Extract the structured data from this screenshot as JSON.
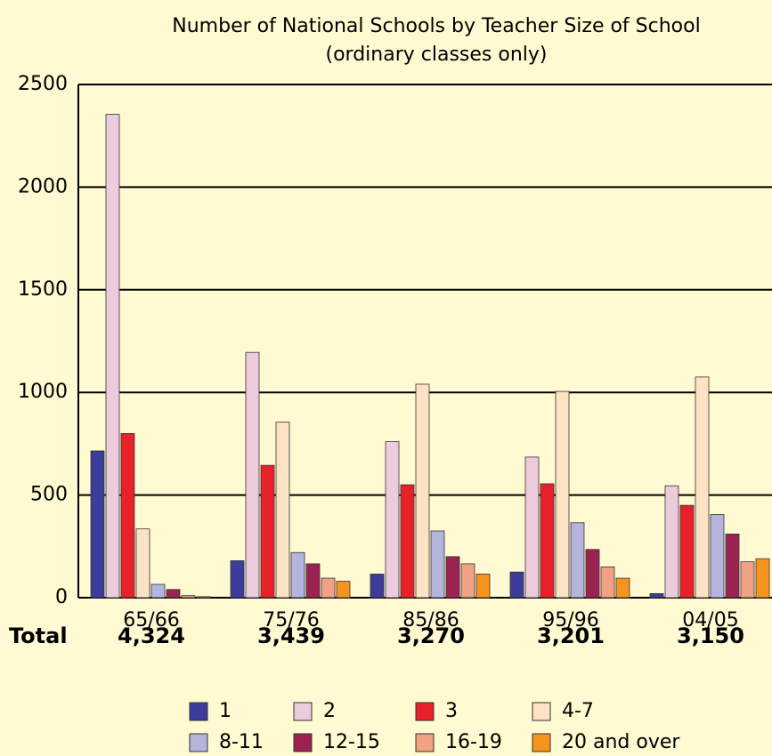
{
  "chart_data": {
    "type": "bar",
    "title": "Number of National Schools by Teacher Size of School",
    "subtitle": "(ordinary classes only)",
    "categories": [
      "65/66",
      "75/76",
      "85/86",
      "95/96",
      "04/05"
    ],
    "series": [
      {
        "name": "1",
        "color": "#3c3c9c",
        "values": [
          715,
          180,
          115,
          125,
          20
        ]
      },
      {
        "name": "2",
        "color": "#ecccdc",
        "values": [
          2355,
          1195,
          760,
          685,
          545
        ]
      },
      {
        "name": "3",
        "color": "#e8202a",
        "values": [
          800,
          645,
          550,
          555,
          450
        ]
      },
      {
        "name": "4-7",
        "color": "#fde2c4",
        "values": [
          335,
          855,
          1040,
          1005,
          1075
        ]
      },
      {
        "name": "8-11",
        "color": "#b4b4dc",
        "values": [
          65,
          220,
          325,
          365,
          405
        ]
      },
      {
        "name": "12-15",
        "color": "#9c2252",
        "values": [
          40,
          165,
          200,
          235,
          310
        ]
      },
      {
        "name": "16-19",
        "color": "#f2a284",
        "values": [
          10,
          95,
          165,
          150,
          175
        ]
      },
      {
        "name": "20 and over",
        "color": "#f7941d",
        "values": [
          5,
          80,
          115,
          95,
          190
        ]
      }
    ],
    "totals_label": "Total",
    "totals": [
      "4,324",
      "3,439",
      "3,270",
      "3,201",
      "3,150"
    ],
    "ylim": [
      0,
      2500
    ],
    "yticks": [
      0,
      500,
      1000,
      1500,
      2000,
      2500
    ],
    "grid": true
  }
}
